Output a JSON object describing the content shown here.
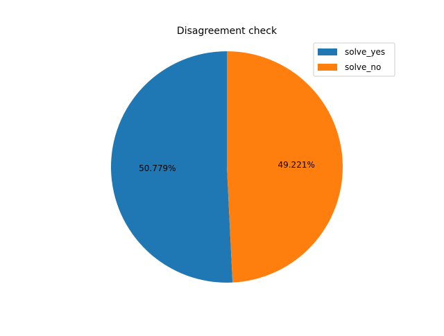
{
  "chart_data": {
    "type": "pie",
    "title": "Disagreement check",
    "labels": [
      "solve_yes",
      "solve_no"
    ],
    "values": [
      50.779,
      49.221
    ],
    "value_labels": [
      "50.779%",
      "49.221%"
    ],
    "colors": [
      "#1f77b4",
      "#ff7f0e"
    ],
    "start_angle_deg": 90,
    "direction": "counterclockwise",
    "legend_position": "top-right"
  }
}
